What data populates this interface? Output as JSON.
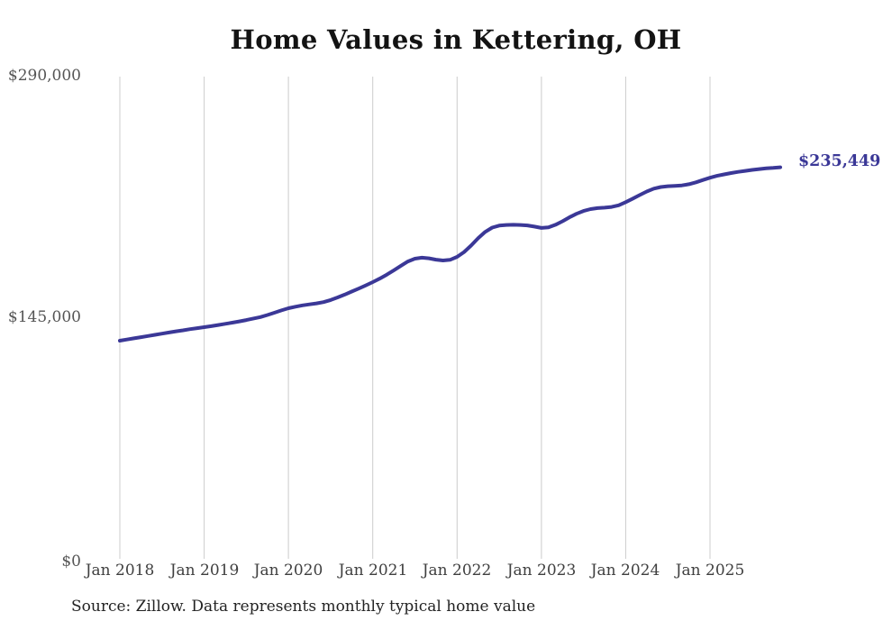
{
  "chart": {
    "title": "Home Values in Kettering, OH",
    "end_label": "$235,449",
    "source_note": "Source: Zillow. Data represents monthly typical home value",
    "colors": {
      "line": "#3b3897",
      "grid": "#cccccc",
      "axis_text": "#555555",
      "x_axis_text": "#3f3f3f",
      "title_text": "#131313",
      "end_label_text": "#3b3897",
      "source_text": "#232323",
      "background": "#ffffff"
    }
  },
  "chart_data": {
    "type": "line",
    "title": "Home Values in Kettering, OH",
    "ylabel": "",
    "xlabel": "",
    "ylim": [
      0,
      290000
    ],
    "grid": "vertical-only",
    "legend": "none",
    "y_ticks": [
      {
        "label": "$0",
        "value": 0
      },
      {
        "label": "$145,000",
        "value": 145000
      },
      {
        "label": "$290,000",
        "value": 290000
      }
    ],
    "x_ticks": [
      "Jan 2018",
      "Jan 2019",
      "Jan 2020",
      "Jan 2021",
      "Jan 2022",
      "Jan 2023",
      "Jan 2024",
      "Jan 2025"
    ],
    "series_name": "Typical home value (monthly)",
    "x": [
      "2018-01",
      "2018-02",
      "2018-03",
      "2018-04",
      "2018-05",
      "2018-06",
      "2018-07",
      "2018-08",
      "2018-09",
      "2018-10",
      "2018-11",
      "2018-12",
      "2019-01",
      "2019-02",
      "2019-03",
      "2019-04",
      "2019-05",
      "2019-06",
      "2019-07",
      "2019-08",
      "2019-09",
      "2019-10",
      "2019-11",
      "2019-12",
      "2020-01",
      "2020-02",
      "2020-03",
      "2020-04",
      "2020-05",
      "2020-06",
      "2020-07",
      "2020-08",
      "2020-09",
      "2020-10",
      "2020-11",
      "2020-12",
      "2021-01",
      "2021-02",
      "2021-03",
      "2021-04",
      "2021-05",
      "2021-06",
      "2021-07",
      "2021-08",
      "2021-09",
      "2021-10",
      "2021-11",
      "2021-12",
      "2022-01",
      "2022-02",
      "2022-03",
      "2022-04",
      "2022-05",
      "2022-06",
      "2022-07",
      "2022-08",
      "2022-09",
      "2022-10",
      "2022-11",
      "2022-12",
      "2023-01",
      "2023-02",
      "2023-03",
      "2023-04",
      "2023-05",
      "2023-06",
      "2023-07",
      "2023-08",
      "2023-09",
      "2023-10",
      "2023-11",
      "2023-12",
      "2024-01",
      "2024-02",
      "2024-03",
      "2024-04",
      "2024-05",
      "2024-06",
      "2024-07",
      "2024-08",
      "2024-09",
      "2024-10",
      "2024-11",
      "2024-12",
      "2025-01",
      "2025-02",
      "2025-03",
      "2025-04",
      "2025-05",
      "2025-06",
      "2025-07",
      "2025-08",
      "2025-09",
      "2025-10",
      "2025-11"
    ],
    "values": [
      131200,
      131900,
      132600,
      133300,
      134000,
      134700,
      135400,
      136100,
      136800,
      137400,
      138100,
      138700,
      139300,
      139900,
      140600,
      141300,
      142000,
      142800,
      143600,
      144500,
      145400,
      146600,
      148000,
      149400,
      150700,
      151600,
      152400,
      153000,
      153600,
      154400,
      155600,
      157200,
      158900,
      160700,
      162500,
      164400,
      166400,
      168500,
      170900,
      173500,
      176200,
      178800,
      180500,
      181100,
      180700,
      179900,
      179400,
      179800,
      181600,
      184500,
      188400,
      192800,
      196600,
      199200,
      200400,
      200800,
      200900,
      200800,
      200500,
      199800,
      199000,
      199300,
      200900,
      203000,
      205400,
      207500,
      209200,
      210300,
      210900,
      211200,
      211600,
      212600,
      214500,
      216600,
      218800,
      220900,
      222600,
      223600,
      224100,
      224300,
      224600,
      225300,
      226400,
      227800,
      229200,
      230300,
      231200,
      232000,
      232700,
      233300,
      233900,
      234400,
      234800,
      235100,
      235449
    ],
    "last_value": 235449,
    "annotations": [
      {
        "text": "$235,449",
        "position": "right-of-line-end"
      }
    ]
  }
}
